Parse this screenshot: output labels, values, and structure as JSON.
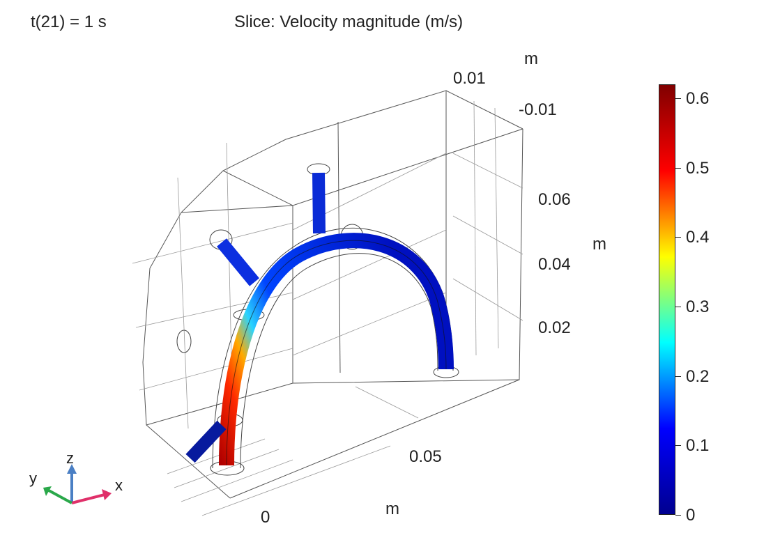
{
  "header": {
    "time_label": "t(21) = 1 s",
    "plot_title": "Slice: Velocity magnitude (m/s)"
  },
  "axes": {
    "y_axis_unit": "m",
    "y_ticks": [
      "0.01",
      "-0.01"
    ],
    "z_axis_unit": "m",
    "z_ticks": [
      "0.06",
      "0.04",
      "0.02"
    ],
    "x_axis_unit": "m",
    "x_ticks": [
      "0.05",
      "0"
    ]
  },
  "triad": {
    "z": "z",
    "y": "y",
    "x": "x"
  },
  "colorbar": {
    "min": 0,
    "max": 0.62,
    "labels": [
      "0.6",
      "0.5",
      "0.4",
      "0.3",
      "0.2",
      "0.1",
      "0"
    ],
    "colors": [
      "#00008f",
      "#0000ff",
      "#00ffff",
      "#ffff00",
      "#ff0000",
      "#800000"
    ]
  }
}
